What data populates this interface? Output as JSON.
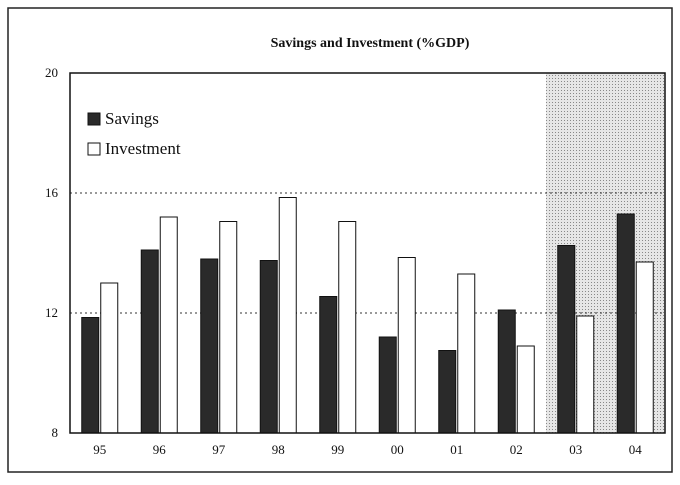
{
  "chart_data": {
    "type": "bar",
    "title": "Savings and Investment (%GDP)",
    "categories": [
      "95",
      "96",
      "97",
      "98",
      "99",
      "00",
      "01",
      "02",
      "03",
      "04"
    ],
    "series": [
      {
        "name": "Savings",
        "color": "#2a2a2a",
        "values": [
          11.85,
          14.1,
          13.8,
          13.75,
          12.55,
          11.2,
          10.75,
          12.1,
          14.25,
          15.3
        ]
      },
      {
        "name": "Investment",
        "color": "#ffffff",
        "values": [
          13.0,
          15.2,
          15.05,
          15.85,
          15.05,
          13.85,
          13.3,
          10.9,
          11.9,
          13.7
        ]
      }
    ],
    "ylim": [
      8,
      20
    ],
    "yticks": [
      8,
      12,
      16,
      20
    ],
    "grid": true,
    "legend": "upper left"
  }
}
